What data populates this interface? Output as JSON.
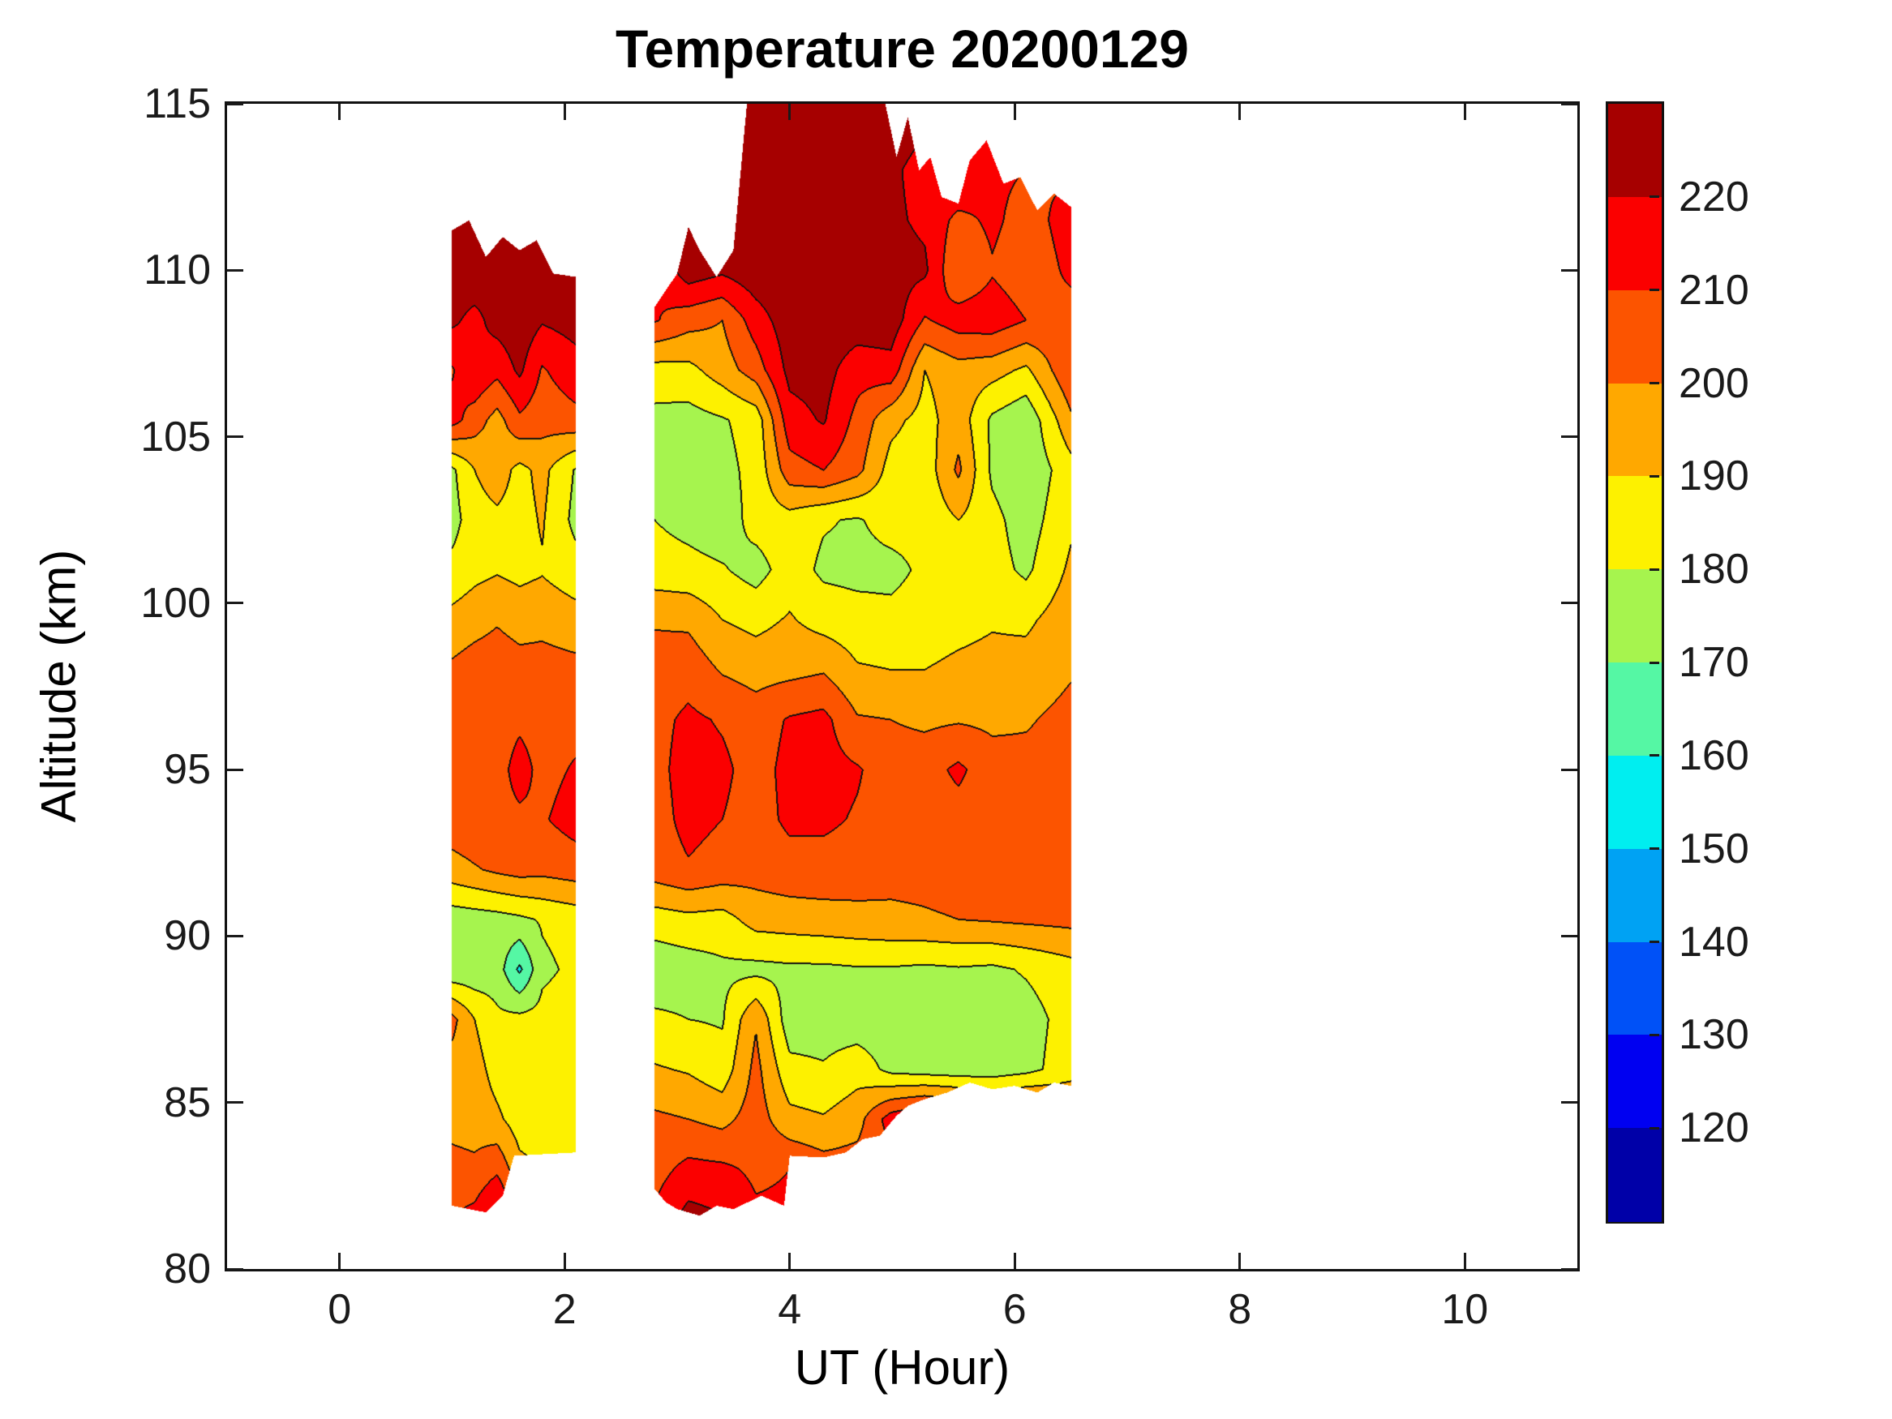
{
  "title": "Temperature 20200129",
  "axes": {
    "xlabel": "UT (Hour)",
    "ylabel": "Altitude (km)",
    "xlim": [
      -1,
      11
    ],
    "ylim": [
      80,
      115
    ],
    "xticks": [
      0,
      2,
      4,
      6,
      8,
      10
    ],
    "yticks": [
      80,
      85,
      90,
      95,
      100,
      105,
      110,
      115
    ]
  },
  "colorbar": {
    "min": 110,
    "max": 230,
    "step": 10,
    "tick_labels": [
      220,
      210,
      200,
      190,
      180,
      170,
      160,
      150,
      140,
      130,
      120
    ]
  },
  "chart_data": {
    "type": "heatmap",
    "title": "Temperature 20200129",
    "xlabel": "UT (Hour)",
    "ylabel": "Altitude (km)",
    "xlim": [
      -1,
      11
    ],
    "ylim": [
      80,
      115
    ],
    "legend_position": "right-colorbar",
    "grid": false,
    "levels": [
      110,
      120,
      130,
      140,
      150,
      160,
      170,
      180,
      190,
      200,
      210,
      220,
      230
    ],
    "palette": [
      "#0000a8",
      "#0000f1",
      "#0051f7",
      "#00a2f3",
      "#00eef0",
      "#55f7a4",
      "#a6f44e",
      "#fdf100",
      "#ffa800",
      "#fc5400",
      "#fb0000",
      "#a60000"
    ],
    "alt": [
      115,
      113,
      111.5,
      110,
      108.5,
      107,
      105.5,
      104,
      102.5,
      101,
      99.5,
      98,
      96.5,
      95,
      93.5,
      92,
      90.5,
      89,
      87.5,
      86,
      84.5,
      83,
      81.5
    ],
    "blocks": [
      {
        "x": [
          1.0,
          1.2,
          1.4,
          1.6,
          1.8,
          2.1
        ],
        "top": [
          [
            1.0,
            111.2
          ],
          [
            1.15,
            111.5
          ],
          [
            1.3,
            110.4
          ],
          [
            1.45,
            111.0
          ],
          [
            1.6,
            110.6
          ],
          [
            1.75,
            110.9
          ],
          [
            1.9,
            109.9
          ],
          [
            2.1,
            109.8
          ]
        ],
        "bottom": [
          [
            1.0,
            81.9
          ],
          [
            1.3,
            81.7
          ],
          [
            1.45,
            82.2
          ],
          [
            1.55,
            83.4
          ],
          [
            2.1,
            83.5
          ]
        ],
        "temps": [
          [
            228,
            228,
            228,
            228,
            228,
            228
          ],
          [
            228,
            228,
            228,
            228,
            228,
            228
          ],
          [
            227,
            228,
            227,
            228,
            226,
            227
          ],
          [
            226,
            227,
            225,
            227,
            224,
            226
          ],
          [
            222,
            217,
            224,
            227,
            221,
            224
          ],
          [
            209,
            219,
            213,
            222,
            209,
            216
          ],
          [
            214,
            205,
            196,
            208,
            204,
            207
          ],
          [
            178,
            190,
            195,
            187,
            193,
            179
          ],
          [
            176,
            186,
            188,
            186,
            191,
            177
          ],
          [
            183,
            187,
            189,
            187,
            189,
            184
          ],
          [
            193,
            196,
            199,
            196,
            197,
            194
          ],
          [
            202,
            205,
            206,
            204,
            204,
            203
          ],
          [
            206,
            207,
            205,
            208,
            206,
            207
          ],
          [
            207,
            209,
            206,
            214,
            207,
            211
          ],
          [
            206,
            208,
            207,
            208,
            209,
            214
          ],
          [
            196,
            199,
            202,
            204,
            203,
            205
          ],
          [
            174,
            175,
            176,
            178,
            181,
            184
          ],
          [
            172,
            173,
            175,
            158,
            178,
            182
          ],
          [
            203,
            190,
            182,
            183,
            183,
            185
          ],
          [
            196,
            194,
            186,
            182,
            183,
            184
          ],
          [
            197,
            196,
            192,
            185,
            184,
            185
          ],
          [
            203,
            202,
            208,
            193,
            190,
            188
          ],
          [
            210,
            214,
            226,
            208,
            205,
            200
          ]
        ]
      },
      {
        "x": [
          2.8,
          3.1,
          3.4,
          3.7,
          4.0,
          4.3,
          4.6,
          4.9,
          5.2,
          5.5,
          5.8,
          6.1,
          6.5
        ],
        "top": [
          [
            2.8,
            108.9
          ],
          [
            2.9,
            109.4
          ],
          [
            3.0,
            109.9
          ],
          [
            3.1,
            111.3
          ],
          [
            3.2,
            110.6
          ],
          [
            3.35,
            109.8
          ],
          [
            3.5,
            110.6
          ],
          [
            3.62,
            115
          ],
          [
            4.85,
            115
          ],
          [
            4.95,
            113.4
          ],
          [
            5.05,
            114.6
          ],
          [
            5.15,
            113.0
          ],
          [
            5.25,
            113.4
          ],
          [
            5.35,
            112.2
          ],
          [
            5.5,
            112.0
          ],
          [
            5.6,
            113.3
          ],
          [
            5.75,
            113.9
          ],
          [
            5.9,
            112.6
          ],
          [
            6.05,
            112.8
          ],
          [
            6.2,
            111.8
          ],
          [
            6.35,
            112.3
          ],
          [
            6.5,
            111.9
          ]
        ],
        "bottom": [
          [
            2.8,
            82.4
          ],
          [
            2.9,
            82.0
          ],
          [
            3.0,
            81.8
          ],
          [
            3.2,
            81.6
          ],
          [
            3.35,
            81.9
          ],
          [
            3.5,
            81.8
          ],
          [
            3.75,
            82.2
          ],
          [
            3.95,
            81.9
          ],
          [
            4.0,
            83.4
          ],
          [
            4.3,
            83.35
          ],
          [
            4.5,
            83.5
          ],
          [
            4.65,
            83.9
          ],
          [
            4.8,
            84.0
          ],
          [
            4.95,
            84.6
          ],
          [
            5.05,
            84.9
          ],
          [
            5.2,
            85.1
          ],
          [
            5.4,
            85.3
          ],
          [
            5.6,
            85.6
          ],
          [
            5.8,
            85.4
          ],
          [
            6.0,
            85.5
          ],
          [
            6.2,
            85.3
          ],
          [
            6.35,
            85.6
          ],
          [
            6.5,
            85.5
          ]
        ],
        "temps": [
          [
            215,
            222,
            226,
            229,
            230,
            229,
            228,
            227,
            224,
            222,
            224,
            222,
            220
          ],
          [
            212,
            221,
            226,
            228,
            229,
            228,
            227,
            222,
            216,
            222,
            212,
            210,
            208
          ],
          [
            214,
            224,
            220,
            227,
            228,
            228,
            226,
            222,
            218,
            207,
            212,
            206,
            214
          ],
          [
            210,
            226,
            222,
            227,
            228,
            228,
            227,
            224,
            222,
            200,
            209,
            204,
            212
          ],
          [
            211,
            204,
            200,
            215,
            226,
            227,
            226,
            226,
            209,
            215,
            216,
            210,
            206
          ],
          [
            186,
            187,
            195,
            205,
            223,
            224,
            214,
            216,
            190,
            196,
            194,
            188,
            209
          ],
          [
            177,
            176,
            179,
            184,
            216,
            221,
            207,
            193,
            186,
            196,
            178,
            172,
            198
          ],
          [
            176,
            174,
            177,
            183,
            206,
            210,
            203,
            186,
            184,
            202,
            178,
            172,
            186
          ],
          [
            180,
            177,
            174,
            184,
            186,
            181,
            179,
            184,
            183,
            190,
            183,
            175,
            188
          ],
          [
            184,
            183,
            181,
            176,
            185,
            178,
            177,
            177,
            182,
            186,
            184,
            178,
            192
          ],
          [
            199,
            198,
            190,
            187,
            191,
            186,
            184,
            183,
            185,
            187,
            189,
            188,
            196
          ],
          [
            204,
            206,
            199,
            196,
            197,
            199,
            191,
            190,
            190,
            192,
            193,
            194,
            199
          ],
          [
            207,
            212,
            209,
            205,
            211,
            213,
            201,
            200,
            198,
            199,
            198,
            199,
            203
          ],
          [
            207,
            214,
            212,
            206,
            213,
            214,
            211,
            205,
            206,
            212,
            204,
            203,
            204
          ],
          [
            206,
            213,
            210,
            206,
            212,
            212,
            209,
            205,
            205,
            206,
            204,
            204,
            205
          ],
          [
            205,
            209,
            206,
            204,
            206,
            206,
            205,
            203,
            203,
            204,
            203,
            203,
            204
          ],
          [
            185,
            187,
            186,
            194,
            195,
            196,
            197,
            198,
            199,
            200,
            201,
            202,
            203
          ],
          [
            173,
            175,
            178,
            177,
            178,
            178,
            179,
            179,
            178,
            179,
            178,
            181,
            186
          ],
          [
            182,
            180,
            179,
            199,
            174,
            175,
            174,
            174,
            175,
            174,
            175,
            176,
            184
          ],
          [
            191,
            189,
            184,
            203,
            183,
            181,
            186,
            177,
            175,
            174,
            174,
            177,
            185
          ],
          [
            202,
            200,
            197,
            205,
            193,
            191,
            196,
            215,
            222,
            218,
            212,
            214,
            206
          ],
          [
            206,
            213,
            212,
            208,
            210,
            205,
            205,
            205,
            205,
            205,
            205,
            205,
            205
          ],
          [
            212,
            224,
            221,
            212,
            212,
            205,
            205,
            205,
            205,
            205,
            205,
            205,
            205
          ]
        ]
      }
    ]
  }
}
